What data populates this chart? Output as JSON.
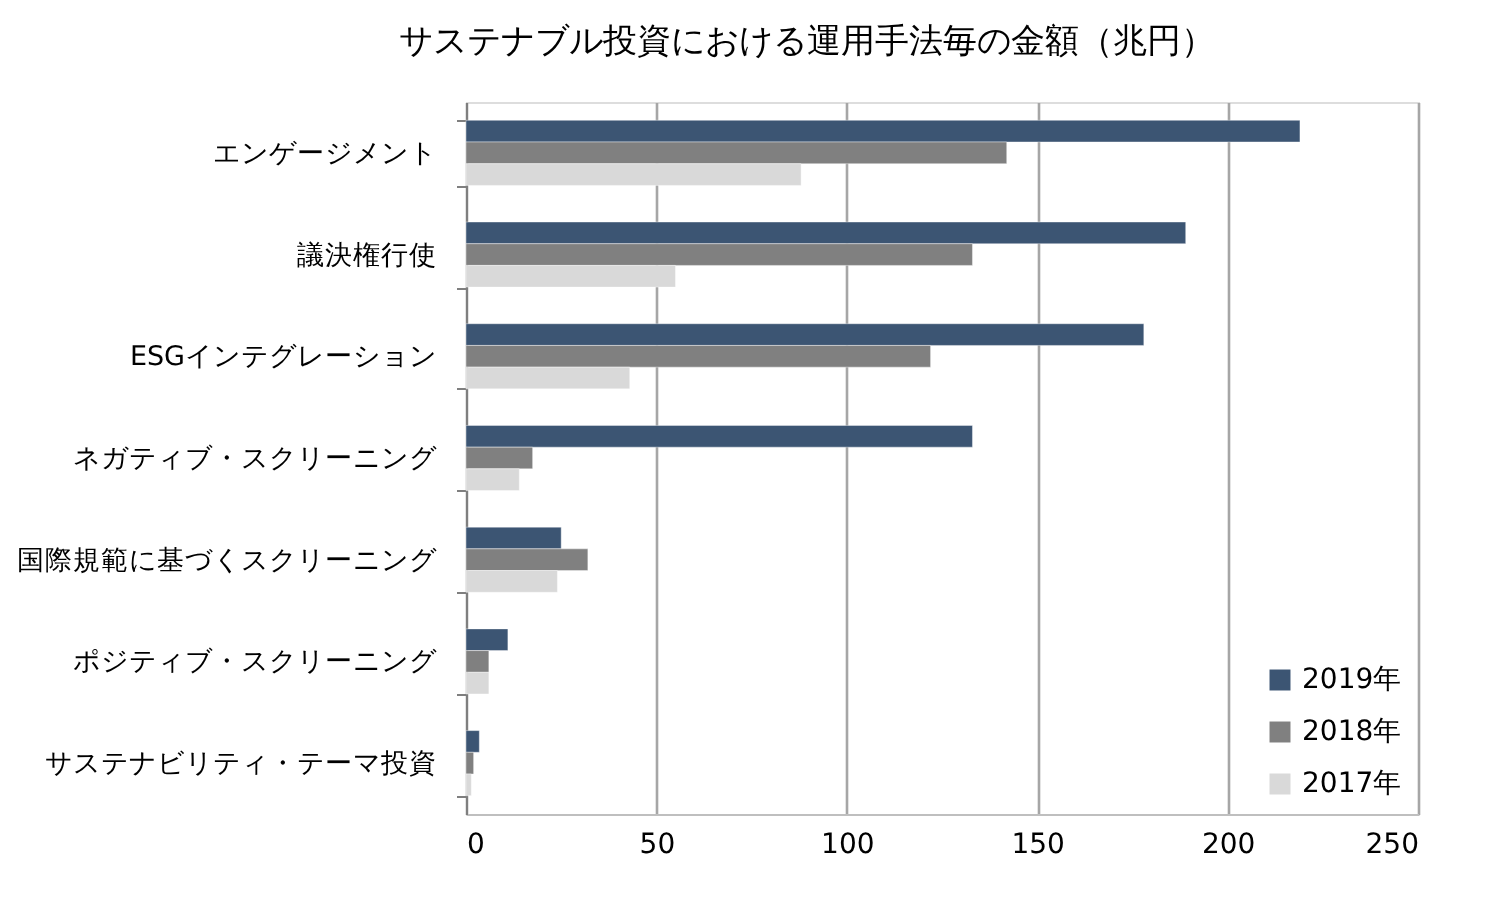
{
  "chart_data": {
    "type": "bar",
    "orientation": "horizontal",
    "title": "サステナブル投資における運用手法毎の金額（兆円）",
    "categories": [
      "エンゲージメント",
      "議決権行使",
      "ESGインテグレーション",
      "ネガティブ・スクリーニング",
      "国際規範に基づくスクリーニング",
      "ポジティブ・スクリーニング",
      "サステナビリティ・テーマ投資"
    ],
    "series": [
      {
        "name": "2019年",
        "color": "#3c5573",
        "values": [
          219,
          189,
          178,
          133,
          25,
          11,
          3.5
        ]
      },
      {
        "name": "2018年",
        "color": "#808080",
        "values": [
          142,
          133,
          122,
          17.5,
          32,
          6,
          2
        ]
      },
      {
        "name": "2017年",
        "color": "#d9d9d9",
        "values": [
          88,
          55,
          43,
          14,
          24,
          6,
          1.4
        ]
      }
    ],
    "xlim": [
      0,
      250
    ],
    "xticks": [
      0,
      50,
      100,
      150,
      200,
      250
    ],
    "grid": "x",
    "legend": "bottom right"
  }
}
